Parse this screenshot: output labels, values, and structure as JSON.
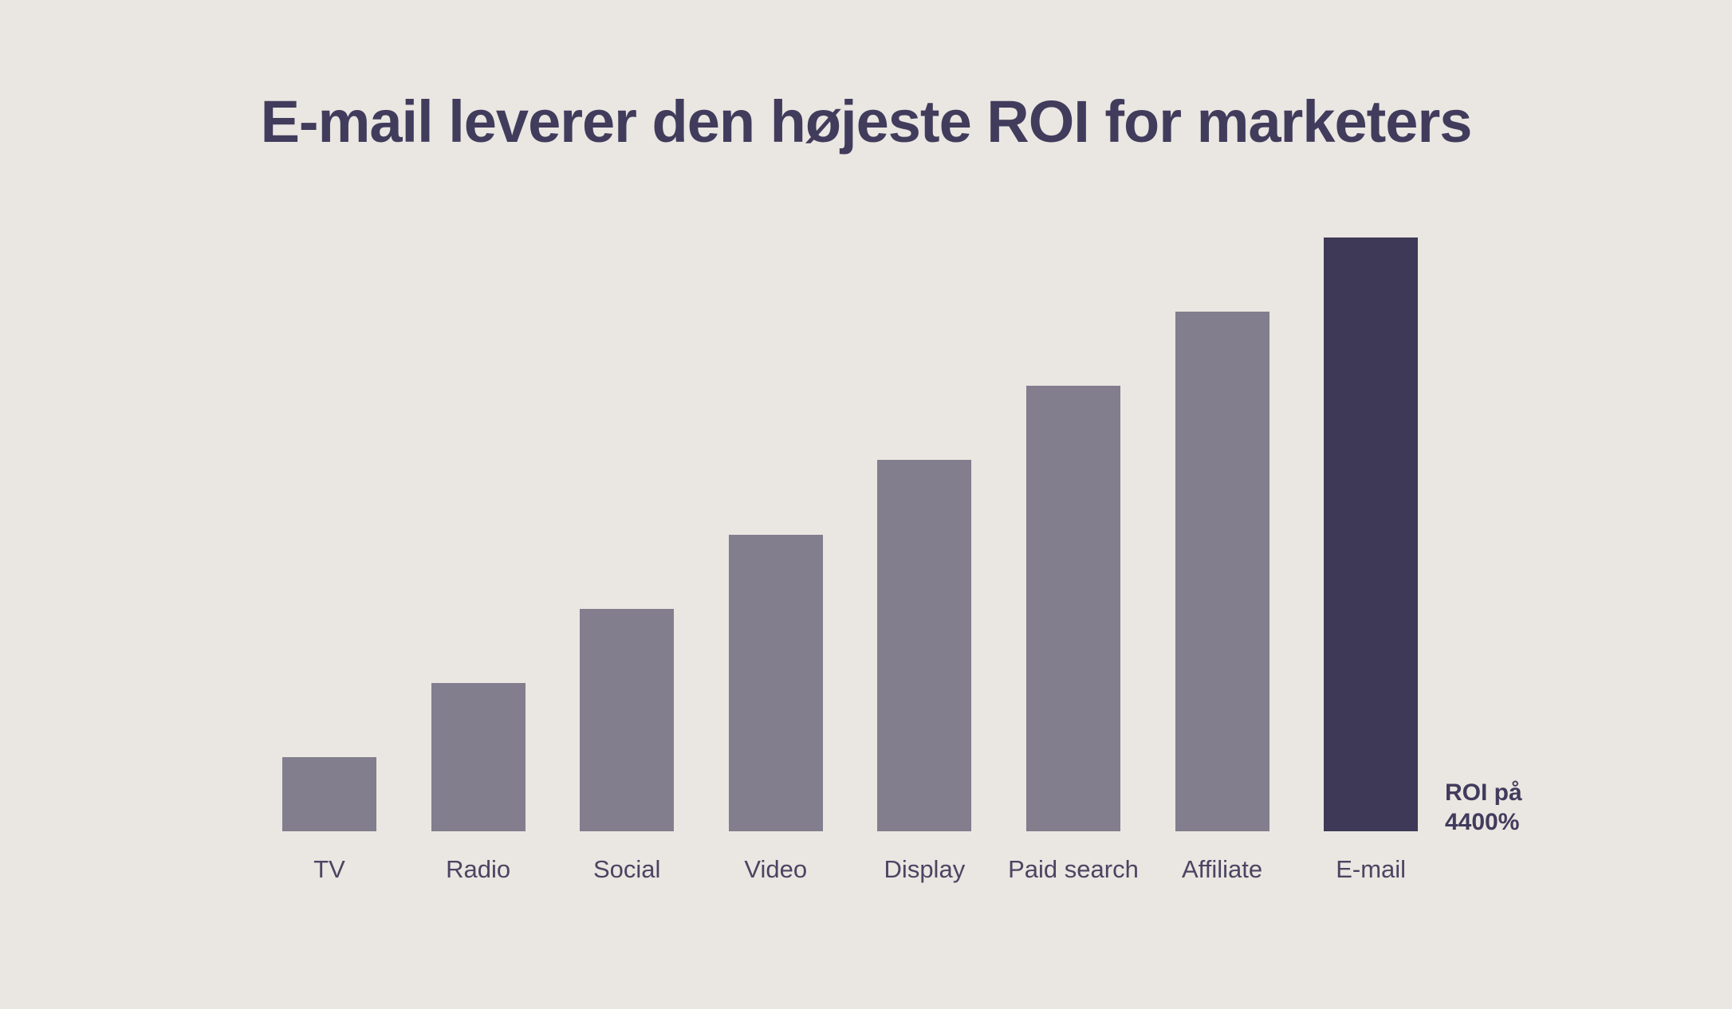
{
  "page": {
    "background_color": "#EAE6E1"
  },
  "header": {
    "title": "E-mail leverer den højeste ROI for marketers",
    "title_color": "#413C5C"
  },
  "chart_data": {
    "type": "bar",
    "title": "E-mail leverer den højeste ROI for marketers",
    "categories": [
      "TV",
      "Radio",
      "Social",
      "Video",
      "Display",
      "Paid search",
      "Affiliate",
      "E-mail"
    ],
    "values": [
      550,
      1100,
      1650,
      2200,
      2750,
      3300,
      3850,
      4400
    ],
    "unit": "%",
    "ylim": [
      0,
      4400
    ],
    "labeled_values": {
      "E-mail": "4400%"
    },
    "highlight_index": 7,
    "bar_color": "#827E8E",
    "highlight_color": "#3D3956",
    "label_color": "#4A4562",
    "annotation": {
      "line1": "ROI på",
      "line2": "4400%",
      "applies_to": "E-mail"
    },
    "xlabel": "",
    "ylabel": "",
    "axes_shown": false,
    "gridlines": false,
    "legend": "none"
  }
}
